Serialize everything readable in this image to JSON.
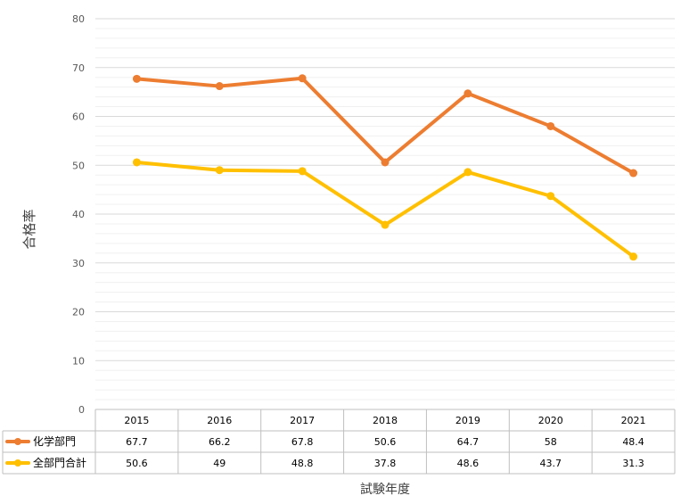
{
  "chart_data": {
    "type": "line",
    "title": "",
    "xlabel": "試験年度",
    "ylabel": "合格率",
    "ylim": [
      0,
      80
    ],
    "yticks": [
      0,
      10,
      20,
      30,
      40,
      50,
      60,
      70,
      80
    ],
    "grid": true,
    "legend": "data-table",
    "categories": [
      "2015",
      "2016",
      "2017",
      "2018",
      "2019",
      "2020",
      "2021"
    ],
    "series": [
      {
        "name": "化学部門",
        "color": "#ED7D31",
        "values": [
          67.7,
          66.2,
          67.8,
          50.6,
          64.7,
          58,
          48.4
        ]
      },
      {
        "name": "全部門合計",
        "color": "#FFC000",
        "values": [
          50.6,
          49,
          48.8,
          37.8,
          48.6,
          43.7,
          31.3
        ]
      }
    ]
  }
}
